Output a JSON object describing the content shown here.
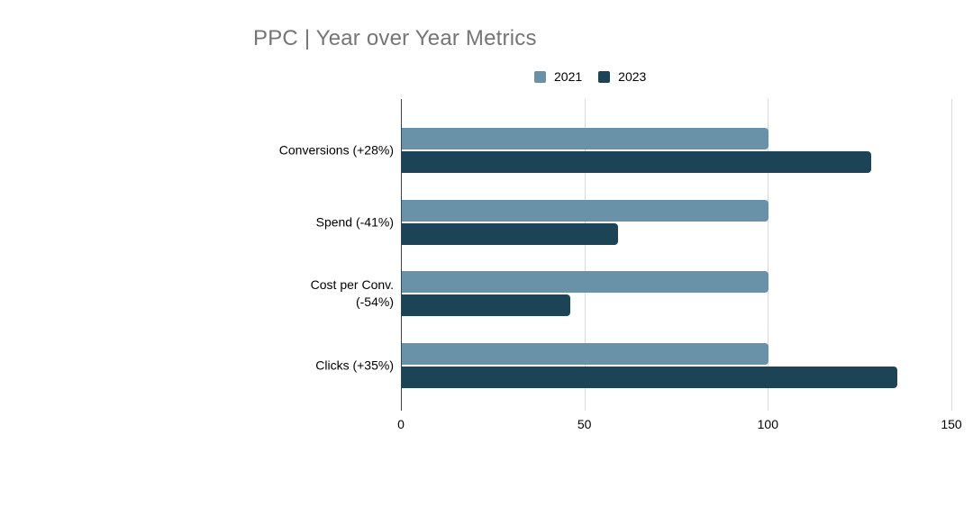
{
  "page": {
    "background": "#ffffff"
  },
  "chart_data": {
    "type": "bar",
    "orientation": "horizontal",
    "title": "PPC | Year over Year Metrics",
    "categories": [
      "Conversions (+28%)",
      "Spend (-41%)",
      "Cost per Conv.\n(-54%)",
      "Clicks (+35%)"
    ],
    "series": [
      {
        "name": "2021",
        "color": "#6991a8",
        "values": [
          100,
          100,
          100,
          100
        ]
      },
      {
        "name": "2023",
        "color": "#1c4356",
        "values": [
          128,
          59,
          46,
          135
        ]
      }
    ],
    "xlim": [
      0,
      150
    ],
    "xticks": [
      0,
      50,
      100,
      150
    ],
    "legend_position": "top",
    "grid": true,
    "styles": {
      "title_color": "#757575",
      "label_color": "#000000",
      "grid_color": "#d9d9d9",
      "axis_color": "#424242"
    }
  }
}
